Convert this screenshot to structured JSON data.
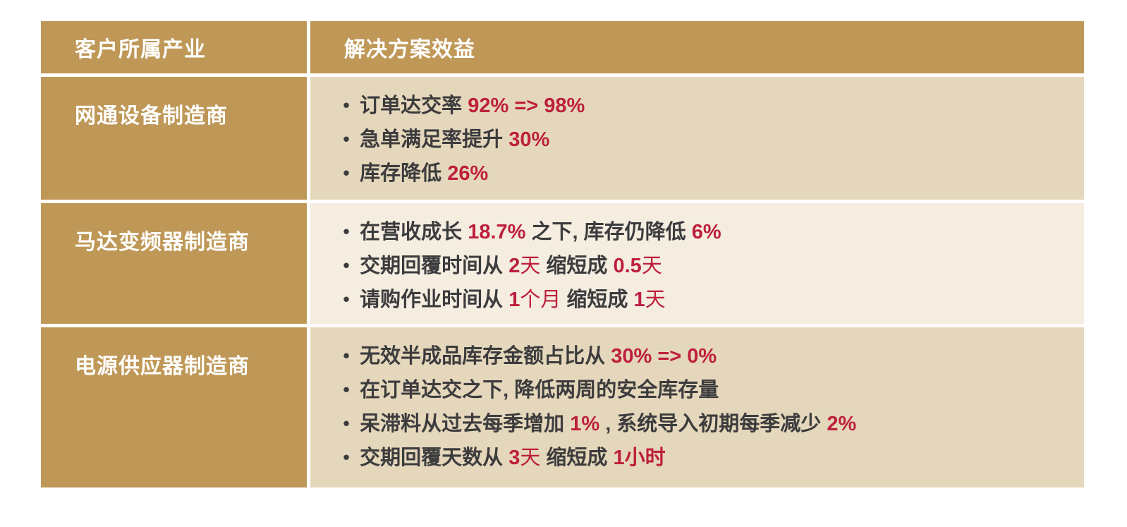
{
  "colors": {
    "gold": "#BF9857",
    "beige": "#E5D7BB",
    "cream": "#F4EDE0",
    "red": "#BD1F3C",
    "dark": "#3C3C3E",
    "header_text": "#FFFFFF",
    "page_background": "#FFFFFF"
  },
  "table": {
    "bullet_icon": "•",
    "columns": [
      {
        "label": "客户所属产业"
      },
      {
        "label": "解决方案效益"
      }
    ],
    "rows": [
      {
        "industry": "网通设备制造商",
        "tone": "beige",
        "benefits": [
          [
            {
              "t": "订单达交率 ",
              "s": "dark"
            },
            {
              "t": "92% => 98%",
              "s": "red-bold"
            }
          ],
          [
            {
              "t": "急单满足率提升 ",
              "s": "dark"
            },
            {
              "t": "30%",
              "s": "red-bold"
            }
          ],
          [
            {
              "t": "库存降低 ",
              "s": "dark"
            },
            {
              "t": "26%",
              "s": "red-bold"
            }
          ]
        ]
      },
      {
        "industry": "马达变频器制造商",
        "tone": "cream",
        "benefits": [
          [
            {
              "t": "在营收成长 ",
              "s": "dark"
            },
            {
              "t": "18.7%",
              "s": "red-bold"
            },
            {
              "t": " 之下, 库存仍降低 ",
              "s": "dark"
            },
            {
              "t": "6%",
              "s": "red-bold"
            }
          ],
          [
            {
              "t": "交期回覆时间从 ",
              "s": "dark"
            },
            {
              "t": "2",
              "s": "red-bold"
            },
            {
              "t": "天",
              "s": "red"
            },
            {
              "t": " 缩短成 ",
              "s": "dark"
            },
            {
              "t": "0.5",
              "s": "red-bold"
            },
            {
              "t": "天",
              "s": "red"
            }
          ],
          [
            {
              "t": "请购作业时间从 ",
              "s": "dark"
            },
            {
              "t": "1",
              "s": "red-bold"
            },
            {
              "t": "个月",
              "s": "red"
            },
            {
              "t": " 缩短成 ",
              "s": "dark"
            },
            {
              "t": "1",
              "s": "red-bold"
            },
            {
              "t": "天",
              "s": "red"
            }
          ]
        ]
      },
      {
        "industry": "电源供应器制造商",
        "tone": "beige",
        "benefits": [
          [
            {
              "t": "无效半成品库存金额占比从 ",
              "s": "dark"
            },
            {
              "t": "30% => 0%",
              "s": "red-bold"
            }
          ],
          [
            {
              "t": "在订单达交之下, 降低两周的安全库存量",
              "s": "dark"
            }
          ],
          [
            {
              "t": "呆滞料从过去每季增加 ",
              "s": "dark"
            },
            {
              "t": "1%",
              "s": "red-bold"
            },
            {
              "t": " , 系统导入初期每季减少 ",
              "s": "dark"
            },
            {
              "t": "2%",
              "s": "red-bold"
            }
          ],
          [
            {
              "t": "交期回覆天数从 ",
              "s": "dark"
            },
            {
              "t": "3",
              "s": "red-bold"
            },
            {
              "t": "天",
              "s": "red"
            },
            {
              "t": " 缩短成 ",
              "s": "dark"
            },
            {
              "t": "1小时",
              "s": "red-bold"
            }
          ]
        ]
      }
    ]
  }
}
